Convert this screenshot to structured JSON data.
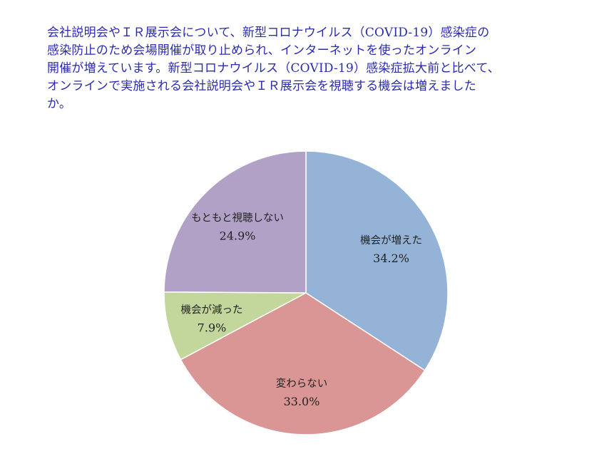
{
  "question": {
    "lines": [
      "会社説明会やＩＲ展示会について、新型コロナウイルス（COVID-19）感染症の",
      "感染防止のため会場開催が取り止められ、インターネットを使ったオンライン",
      "開催が増えています。新型コロナウイルス（COVID-19）感染症拡大前と比べて、",
      "オンラインで実施される会社説明会やＩＲ展示会を視聴する機会は増えました",
      "か。"
    ]
  },
  "chart_data": {
    "type": "pie",
    "title": "",
    "start": "12 o'clock",
    "direction": "clockwise",
    "slices": [
      {
        "label": "機会が増えた",
        "value": 34.2,
        "value_label": "34.2%",
        "color": "#95b3d7"
      },
      {
        "label": "変わらない",
        "value": 33.0,
        "value_label": "33.0%",
        "color": "#d99694"
      },
      {
        "label": "機会が減った",
        "value": 7.9,
        "value_label": "7.9%",
        "color": "#c3d69b"
      },
      {
        "label": "もともと視聴しない",
        "value": 24.9,
        "value_label": "24.9%",
        "color": "#b2a1c7"
      }
    ]
  }
}
